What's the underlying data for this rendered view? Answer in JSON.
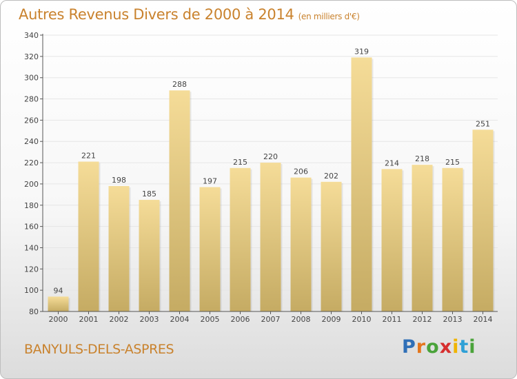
{
  "title": "Autres Revenus Divers de 2000 à 2014",
  "subtitle": "(en milliers d'€)",
  "footer": {
    "location": "BANYULS-DELS-ASPRES"
  },
  "logo": {
    "text": "Proxiti",
    "letters": [
      {
        "char": "P",
        "color": "#2f6fb7"
      },
      {
        "char": "r",
        "color": "#e4761d"
      },
      {
        "char": "o",
        "color": "#4aa33a"
      },
      {
        "char": "x",
        "color": "#d62f2f"
      },
      {
        "char": "i",
        "color": "#f0b400"
      },
      {
        "char": "t",
        "color": "#2fa0d6"
      },
      {
        "char": "i",
        "color": "#4aa33a"
      }
    ]
  },
  "colors": {
    "title": "#c9822d",
    "bar_top": "#f5dc98",
    "bar_bottom": "#c5ab63",
    "grid": "#e6e6e6",
    "axis": "#555555"
  },
  "chart_data": {
    "type": "bar",
    "categories": [
      "2000",
      "2001",
      "2002",
      "2003",
      "2004",
      "2005",
      "2006",
      "2007",
      "2008",
      "2009",
      "2010",
      "2011",
      "2012",
      "2013",
      "2014"
    ],
    "values": [
      94,
      221,
      198,
      185,
      288,
      197,
      215,
      220,
      206,
      202,
      319,
      214,
      218,
      215,
      251
    ],
    "data_labels": [
      "94",
      "221",
      "198",
      "185",
      "288",
      "197",
      "215",
      "220",
      "206",
      "202",
      "319",
      "214",
      "218",
      "215",
      "251"
    ],
    "yticks": [
      "80",
      "100",
      "120",
      "140",
      "160",
      "180",
      "200",
      "220",
      "240",
      "260",
      "280",
      "300",
      "320",
      "340"
    ],
    "ylim": [
      80,
      340
    ],
    "grid": true,
    "legend": "none"
  }
}
